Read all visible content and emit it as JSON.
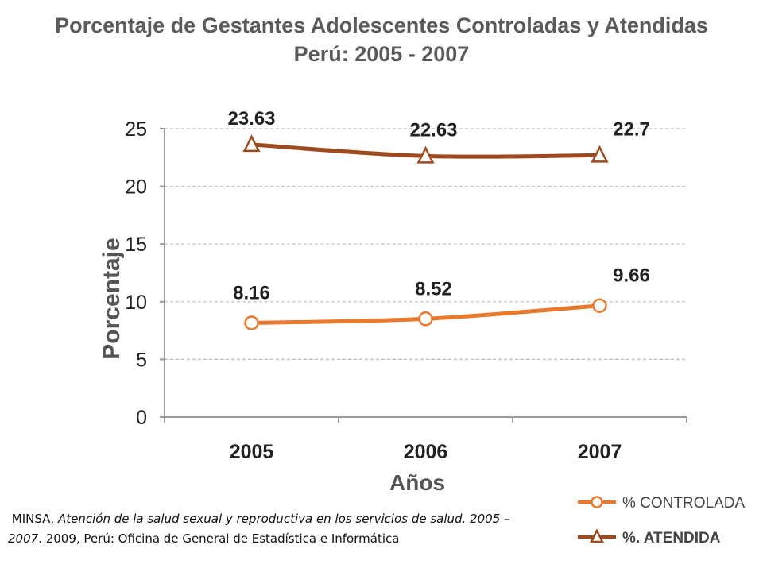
{
  "chart_data": {
    "type": "line",
    "title": "Porcentaje de Gestantes Adolescentes Controladas y Atendidas",
    "subtitle": "Perú: 2005 - 2007",
    "xlabel": "Años",
    "ylabel": "Porcentaje",
    "categories": [
      "2005",
      "2006",
      "2007"
    ],
    "ylim": [
      0,
      25
    ],
    "yticks": [
      0,
      5,
      10,
      15,
      20,
      25
    ],
    "grid": true,
    "legend_position": "bottom-right",
    "series": [
      {
        "name": "%. ATENDIDA",
        "marker": "triangle",
        "color": "#9c4a1e",
        "values": [
          23.63,
          22.63,
          22.7
        ],
        "labels": [
          "23.63",
          "22.63",
          "22.7"
        ]
      },
      {
        "name": "% CONTROLADA",
        "marker": "circle",
        "color": "#e8792d",
        "values": [
          8.16,
          8.52,
          9.66
        ],
        "labels": [
          "8.16",
          "8.52",
          "9.66"
        ]
      }
    ]
  },
  "source": {
    "part1": "MINSA, ",
    "part2": "Atención de la salud sexual y reproductiva en los servicios de salud. 2005 – 2007",
    "part3": ". 2009, Perú: Oficina de General de Estadística e Informática"
  }
}
